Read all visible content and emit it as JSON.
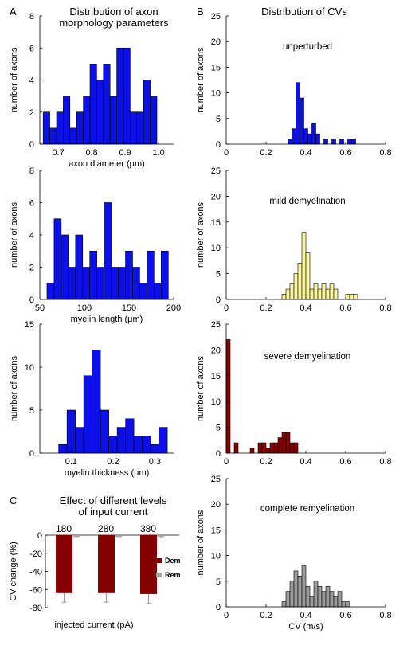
{
  "panel_labels": {
    "a": "A",
    "b": "B",
    "c": "C"
  },
  "titles": {
    "a_line1": "Distribution of axon",
    "a_line2": "morphology parameters",
    "b": "Distribution of CVs",
    "c_line1": "Effect of different levels",
    "c_line2": "of input current"
  },
  "colors": {
    "blue": "#0a10e6",
    "yellow": "#fbf6a0",
    "darkred": "#850000",
    "gray": "#9b9b9b",
    "rem": "#a3a3a3"
  },
  "chart_data": [
    {
      "id": "axon-diameter",
      "type": "bar",
      "xlabel": "axon diameter (μm)",
      "ylabel": "number of axons",
      "xlim": [
        0.645,
        1.045
      ],
      "ylim": [
        0,
        8
      ],
      "xticks": [
        0.7,
        0.8,
        0.9,
        1.0
      ],
      "xtick_labels": [
        "0.7",
        "0.8",
        "0.9",
        "1.0"
      ],
      "yticks": [
        0,
        2,
        4,
        6,
        8
      ],
      "bin_start": 0.655,
      "bin_width": 0.02,
      "values": [
        2,
        1,
        2,
        3,
        1,
        2,
        3,
        5,
        4,
        5,
        3,
        6,
        6,
        2,
        2,
        4,
        3
      ]
    },
    {
      "id": "myelin-length",
      "type": "bar",
      "xlabel": "myelin length (μm)",
      "ylabel": "number of axons",
      "xlim": [
        50,
        200
      ],
      "ylim": [
        0,
        8
      ],
      "xticks": [
        50,
        100,
        150,
        200
      ],
      "xtick_labels": [
        "50",
        "100",
        "150",
        "200"
      ],
      "yticks": [
        0,
        2,
        4,
        6,
        8
      ],
      "bin_start": 58,
      "bin_width": 8,
      "values": [
        1,
        5,
        4,
        2,
        4,
        2,
        3,
        2,
        6,
        2,
        2,
        3,
        2,
        1,
        3,
        1,
        3
      ]
    },
    {
      "id": "myelin-thickness",
      "type": "bar",
      "xlabel": "myelin thickness (μm)",
      "ylabel": "number of axons",
      "xlim": [
        0.025,
        0.345
      ],
      "ylim": [
        0,
        15
      ],
      "xticks": [
        0.1,
        0.2,
        0.3
      ],
      "xtick_labels": [
        "0.1",
        "0.2",
        "0.3"
      ],
      "yticks": [
        0,
        5,
        10,
        15
      ],
      "bin_start": 0.07,
      "bin_width": 0.02,
      "values": [
        1,
        5,
        3,
        9,
        12,
        5,
        2,
        3,
        4,
        2,
        2,
        1,
        3
      ]
    },
    {
      "id": "cv-unperturbed",
      "type": "bar",
      "label": "unperturbed",
      "ylabel": "number of axons",
      "xlabel": "",
      "xlim": [
        0,
        0.8
      ],
      "ylim": [
        0,
        25
      ],
      "xticks": [
        0,
        0.2,
        0.4,
        0.6,
        0.8
      ],
      "xtick_labels": [
        "0",
        "0.2",
        "0.4",
        "0.6",
        "0.8"
      ],
      "yticks": [
        0,
        5,
        10,
        15,
        20,
        25
      ],
      "bin_start": 0.31,
      "bin_width": 0.02,
      "values": [
        1,
        3,
        12,
        9,
        3,
        2,
        4,
        2,
        0,
        1,
        0,
        1,
        0,
        1,
        0,
        1,
        1
      ]
    },
    {
      "id": "cv-mild",
      "type": "bar",
      "label": "mild demyelination",
      "ylabel": "number of axons",
      "xlabel": "",
      "xlim": [
        0,
        0.8
      ],
      "ylim": [
        0,
        25
      ],
      "xticks": [
        0,
        0.2,
        0.4,
        0.6,
        0.8
      ],
      "xtick_labels": [
        "0",
        "0.2",
        "0.4",
        "0.6",
        "0.8"
      ],
      "yticks": [
        0,
        5,
        10,
        15,
        20,
        25
      ],
      "bin_start": 0.28,
      "bin_width": 0.02,
      "values": [
        1,
        2,
        3,
        5,
        7,
        13,
        9,
        2,
        3,
        2,
        3,
        2,
        3,
        2,
        0,
        0,
        1,
        1,
        1
      ]
    },
    {
      "id": "cv-severe",
      "type": "bar",
      "label": "severe demyelination",
      "ylabel": "number of axons",
      "xlabel": "",
      "xlim": [
        0,
        0.8
      ],
      "ylim": [
        0,
        25
      ],
      "xticks": [
        0,
        0.2,
        0.4,
        0.6,
        0.8
      ],
      "xtick_labels": [
        "0",
        "0.2",
        "0.4",
        "0.6",
        "0.8"
      ],
      "yticks": [
        0,
        5,
        10,
        15,
        20,
        25
      ],
      "bin_start": 0.0,
      "bin_width": 0.02,
      "values": [
        22,
        0,
        2,
        0,
        0,
        0,
        1,
        0,
        2,
        2,
        1,
        2,
        2,
        3,
        4,
        4,
        2,
        2
      ]
    },
    {
      "id": "cv-remyelination",
      "type": "bar",
      "label": "complete remyelination",
      "ylabel": "number of axons",
      "xlabel": "CV (m/s)",
      "xlim": [
        0,
        0.8
      ],
      "ylim": [
        0,
        25
      ],
      "xticks": [
        0,
        0.2,
        0.4,
        0.6,
        0.8
      ],
      "xtick_labels": [
        "0",
        "0.2",
        "0.4",
        "0.6",
        "0.8"
      ],
      "yticks": [
        0,
        5,
        10,
        15,
        20,
        25
      ],
      "bin_start": 0.28,
      "bin_width": 0.02,
      "values": [
        1,
        3,
        5,
        7,
        6,
        8,
        4,
        2,
        5,
        4,
        3,
        4,
        3,
        2,
        3,
        1,
        1
      ]
    },
    {
      "id": "cv-change",
      "type": "bar",
      "xlabel": "injected current (pA)",
      "ylabel": "CV change (%)",
      "ylim": [
        -80,
        0
      ],
      "yticks": [
        0,
        -20,
        -40,
        -60,
        -80
      ],
      "ytick_labels": [
        "0",
        "-20",
        "-40",
        "-60",
        "-80"
      ],
      "categories": [
        "180",
        "280",
        "380"
      ],
      "series": [
        {
          "name": "Dem",
          "values": [
            -64,
            -64,
            -65
          ],
          "errors": [
            10,
            10,
            10
          ]
        },
        {
          "name": "Rem",
          "values": [
            -2,
            -2,
            -2
          ],
          "errors": [
            1.5,
            1.5,
            1.5
          ]
        }
      ],
      "legend": "right"
    }
  ]
}
